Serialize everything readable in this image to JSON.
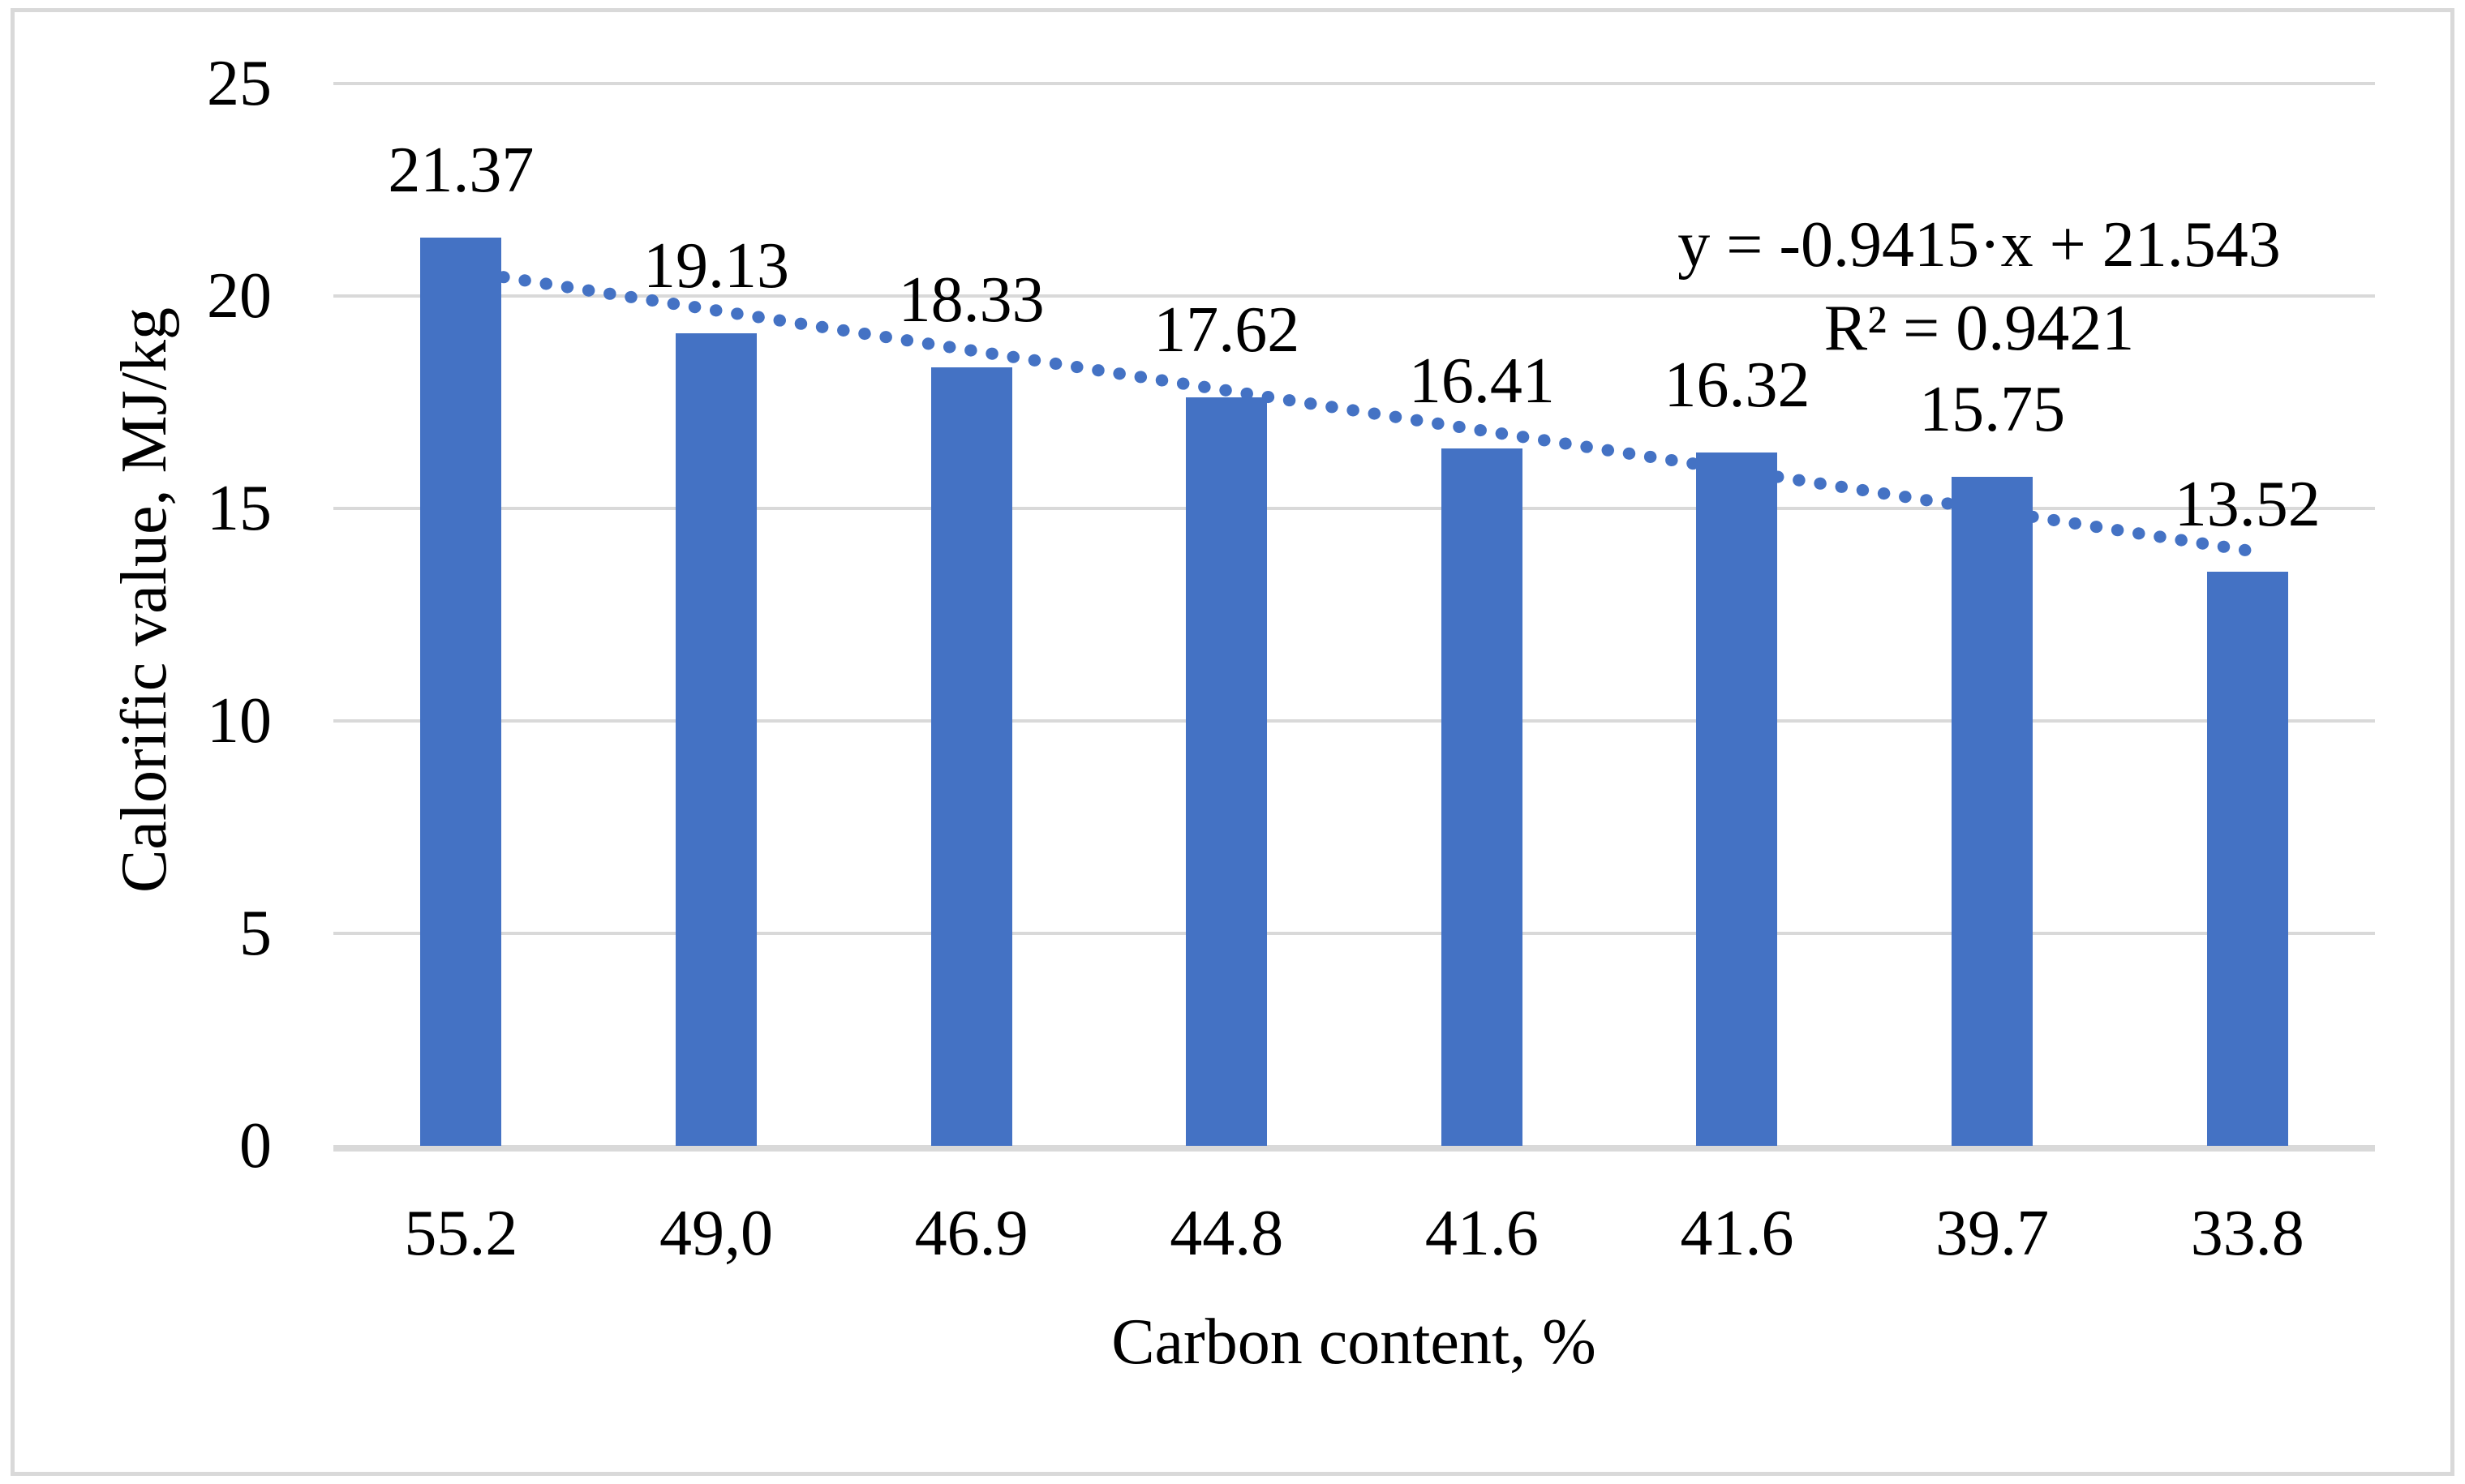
{
  "figure": {
    "background_color": "#FFFFFF",
    "border_color": "#D9D9D9"
  },
  "chart_data": {
    "type": "bar",
    "title": "",
    "categories": [
      "55.2",
      "49,0",
      "46.9",
      "44.8",
      "41.6",
      "41.6",
      "39.7",
      "33.8"
    ],
    "values": [
      21.37,
      19.13,
      18.33,
      17.62,
      16.41,
      16.32,
      15.75,
      13.52
    ],
    "data_labels": [
      "21.37",
      "19.13",
      "18.33",
      "17.62",
      "16.41",
      "16.32",
      "15.75",
      "13.52"
    ],
    "xlabel": "Carbon content, %",
    "ylabel": "Calorific value, MJ/kg",
    "ylim": [
      0,
      25
    ],
    "ytick_interval": 5,
    "yticks": [
      "0",
      "5",
      "10",
      "15",
      "20",
      "25"
    ],
    "grid": true,
    "legend": "none",
    "bar_color": "#4472C4",
    "gridline_color": "#D9D9D9",
    "axis_line_color": "#D9D9D9",
    "trendline": {
      "type": "linear",
      "style": "dotted",
      "color": "#4472C4",
      "slope": -0.9415,
      "intercept": 21.543,
      "equation": "y = -0.9415·x + 21.543",
      "r_squared_label": "R² = 0.9421"
    }
  }
}
